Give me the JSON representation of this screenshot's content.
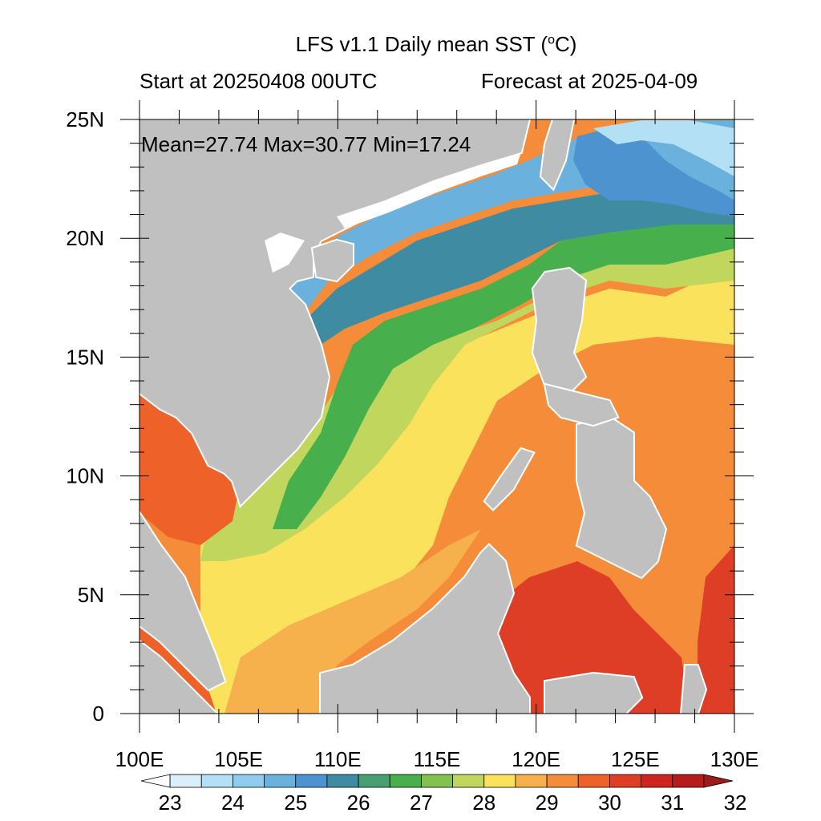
{
  "header": {
    "title_prefix": "LFS v1.1 Daily mean SST (",
    "title_unit_sup": "o",
    "title_unit": "C)",
    "left": "Start at 20250408 00UTC",
    "right": "Forecast at 2025-04-09"
  },
  "stats": {
    "text": "Mean=27.74  Max=30.77  Min=17.24"
  },
  "axes": {
    "y_ticks": [
      "25N",
      "20N",
      "15N",
      "10N",
      "5N",
      "0"
    ],
    "x_ticks": [
      "100E",
      "105E",
      "110E",
      "115E",
      "120E",
      "125E",
      "130E"
    ]
  },
  "colorbar": {
    "labels": [
      "23",
      "24",
      "25",
      "26",
      "27",
      "28",
      "29",
      "30",
      "31",
      "32"
    ],
    "colors": [
      "#ffffff",
      "#d9f0fb",
      "#b3e0f5",
      "#8fcdee",
      "#6ab1de",
      "#4d93cf",
      "#3f8ba2",
      "#489f72",
      "#47b04d",
      "#84c250",
      "#c1d65c",
      "#fbe25c",
      "#f6b04c",
      "#f58c3a",
      "#ee6229",
      "#de3e25",
      "#ce2520",
      "#b71c1c",
      "#9c1a1a"
    ]
  },
  "map": {
    "land_color": "#c0c0c0",
    "coast_color": "#ffffff"
  }
}
